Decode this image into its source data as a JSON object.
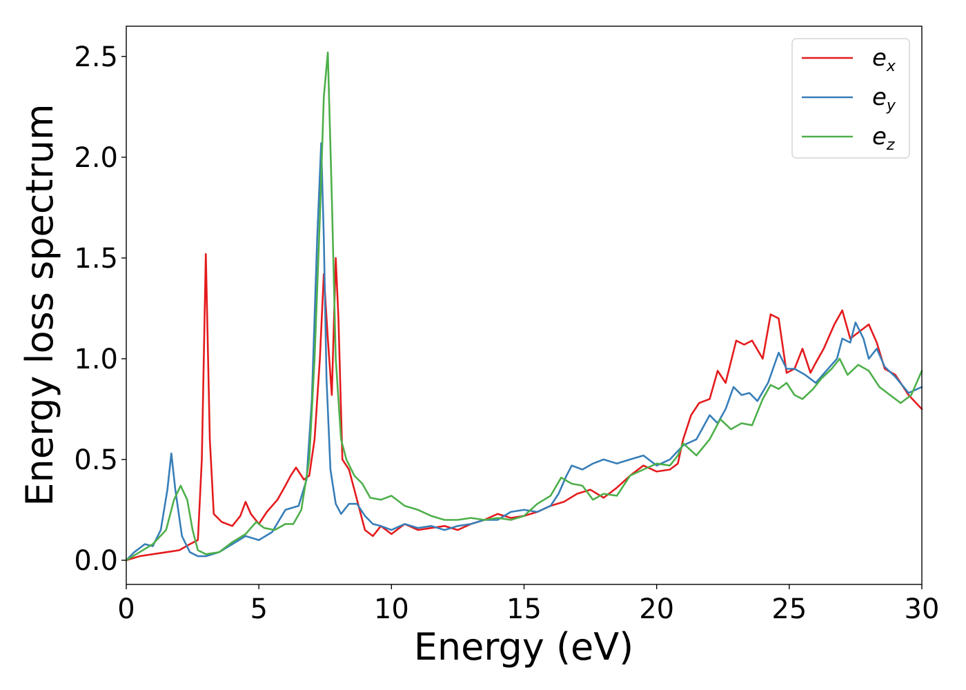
{
  "chart_data": {
    "type": "line",
    "xlabel": "Energy (eV)",
    "ylabel": "Energy loss spectrum",
    "xlim": [
      0,
      30
    ],
    "ylim": [
      -0.12,
      2.65
    ],
    "xticks": [
      0,
      5,
      10,
      15,
      20,
      25,
      30
    ],
    "xtick_labels": [
      "0",
      "5",
      "10",
      "15",
      "20",
      "25",
      "30"
    ],
    "yticks": [
      0.0,
      0.5,
      1.0,
      1.5,
      2.0,
      2.5
    ],
    "ytick_labels": [
      "0.0",
      "0.5",
      "1.0",
      "1.5",
      "2.0",
      "2.5"
    ],
    "grid": false,
    "legend_position": "top-right",
    "series": [
      {
        "name": "e_x",
        "legend_base": "e",
        "legend_sub": "x",
        "color": "#e41a1c",
        "x": [
          0,
          0.5,
          1,
          1.5,
          2,
          2.4,
          2.7,
          2.85,
          3.0,
          3.15,
          3.3,
          3.6,
          4.0,
          4.3,
          4.5,
          4.7,
          5.0,
          5.3,
          5.7,
          6.0,
          6.2,
          6.4,
          6.7,
          6.9,
          7.1,
          7.3,
          7.45,
          7.6,
          7.75,
          7.9,
          8.0,
          8.15,
          8.4,
          8.7,
          9.0,
          9.3,
          9.6,
          10.0,
          10.5,
          11.0,
          11.5,
          12.0,
          12.5,
          13.0,
          13.5,
          14.0,
          14.5,
          15.0,
          15.5,
          16.0,
          16.5,
          17.0,
          17.5,
          18.0,
          18.5,
          19.0,
          19.5,
          20.0,
          20.5,
          20.8,
          21.0,
          21.3,
          21.6,
          22.0,
          22.3,
          22.6,
          23.0,
          23.3,
          23.6,
          24.0,
          24.3,
          24.6,
          24.9,
          25.2,
          25.5,
          25.8,
          26.0,
          26.3,
          26.7,
          27.0,
          27.3,
          27.6,
          28.0,
          28.3,
          28.6,
          29.0,
          29.5,
          30.0
        ],
        "y": [
          0.0,
          0.02,
          0.03,
          0.04,
          0.05,
          0.08,
          0.1,
          0.5,
          1.52,
          0.6,
          0.23,
          0.19,
          0.17,
          0.22,
          0.29,
          0.23,
          0.18,
          0.24,
          0.3,
          0.37,
          0.42,
          0.46,
          0.4,
          0.42,
          0.6,
          1.0,
          1.42,
          1.1,
          0.82,
          1.5,
          1.2,
          0.5,
          0.45,
          0.3,
          0.15,
          0.12,
          0.17,
          0.13,
          0.18,
          0.15,
          0.16,
          0.17,
          0.15,
          0.18,
          0.2,
          0.23,
          0.21,
          0.22,
          0.24,
          0.27,
          0.29,
          0.33,
          0.35,
          0.31,
          0.36,
          0.42,
          0.47,
          0.44,
          0.45,
          0.48,
          0.6,
          0.72,
          0.78,
          0.8,
          0.94,
          0.88,
          1.09,
          1.07,
          1.09,
          1.0,
          1.22,
          1.2,
          0.93,
          0.95,
          1.05,
          0.93,
          0.98,
          1.05,
          1.17,
          1.24,
          1.1,
          1.13,
          1.17,
          1.08,
          0.95,
          0.92,
          0.82,
          0.75
        ]
      },
      {
        "name": "e_y",
        "legend_base": "e",
        "legend_sub": "y",
        "color": "#377eb8",
        "x": [
          0,
          0.3,
          0.7,
          1.0,
          1.3,
          1.55,
          1.7,
          1.85,
          2.1,
          2.4,
          2.7,
          3.0,
          3.5,
          4.0,
          4.5,
          5.0,
          5.5,
          6.0,
          6.5,
          6.8,
          7.0,
          7.2,
          7.35,
          7.45,
          7.55,
          7.7,
          7.9,
          8.1,
          8.4,
          8.7,
          9.0,
          9.3,
          9.6,
          10.0,
          10.5,
          11.0,
          11.5,
          12.0,
          12.5,
          13.0,
          13.5,
          14.0,
          14.5,
          15.0,
          15.5,
          16.0,
          16.3,
          16.6,
          16.8,
          17.2,
          17.6,
          18.0,
          18.5,
          19.0,
          19.5,
          20.0,
          20.5,
          21.0,
          21.5,
          22.0,
          22.3,
          22.6,
          22.9,
          23.2,
          23.5,
          23.8,
          24.2,
          24.6,
          24.9,
          25.2,
          25.6,
          26.0,
          26.4,
          26.8,
          27.0,
          27.3,
          27.5,
          27.8,
          28.0,
          28.3,
          28.6,
          29.0,
          29.5,
          30.0
        ],
        "y": [
          0.0,
          0.04,
          0.08,
          0.07,
          0.15,
          0.35,
          0.53,
          0.35,
          0.12,
          0.04,
          0.02,
          0.02,
          0.04,
          0.08,
          0.12,
          0.1,
          0.14,
          0.25,
          0.27,
          0.4,
          0.8,
          1.6,
          2.07,
          1.6,
          0.9,
          0.45,
          0.28,
          0.23,
          0.28,
          0.28,
          0.22,
          0.18,
          0.17,
          0.15,
          0.18,
          0.16,
          0.17,
          0.15,
          0.17,
          0.18,
          0.2,
          0.2,
          0.24,
          0.25,
          0.24,
          0.27,
          0.33,
          0.42,
          0.47,
          0.45,
          0.48,
          0.5,
          0.48,
          0.5,
          0.52,
          0.47,
          0.5,
          0.57,
          0.6,
          0.72,
          0.68,
          0.75,
          0.86,
          0.82,
          0.83,
          0.79,
          0.88,
          1.03,
          0.95,
          0.95,
          0.92,
          0.88,
          0.94,
          1.0,
          1.1,
          1.08,
          1.18,
          1.1,
          1.0,
          1.05,
          0.96,
          0.91,
          0.83,
          0.86
        ]
      },
      {
        "name": "e_z",
        "legend_base": "e",
        "legend_sub": "z",
        "color": "#4daf4a",
        "x": [
          0,
          0.5,
          1.0,
          1.5,
          1.8,
          2.05,
          2.3,
          2.5,
          2.7,
          3.0,
          3.5,
          4.0,
          4.5,
          4.9,
          5.2,
          5.6,
          6.0,
          6.3,
          6.6,
          6.9,
          7.1,
          7.3,
          7.45,
          7.6,
          7.75,
          7.9,
          8.1,
          8.3,
          8.6,
          8.9,
          9.2,
          9.6,
          10.0,
          10.5,
          11.0,
          11.5,
          12.0,
          12.5,
          13.0,
          13.5,
          14.0,
          14.5,
          15.0,
          15.5,
          16.0,
          16.4,
          16.8,
          17.2,
          17.6,
          18.0,
          18.5,
          19.0,
          19.5,
          20.0,
          20.5,
          20.8,
          21.0,
          21.5,
          22.0,
          22.4,
          22.8,
          23.2,
          23.6,
          24.0,
          24.3,
          24.6,
          24.9,
          25.2,
          25.5,
          25.9,
          26.2,
          26.6,
          26.9,
          27.2,
          27.6,
          28.0,
          28.4,
          28.8,
          29.2,
          29.6,
          30.0
        ],
        "y": [
          0.0,
          0.04,
          0.08,
          0.15,
          0.3,
          0.37,
          0.3,
          0.15,
          0.05,
          0.03,
          0.04,
          0.09,
          0.13,
          0.19,
          0.16,
          0.15,
          0.18,
          0.18,
          0.25,
          0.5,
          1.0,
          1.7,
          2.3,
          2.52,
          1.8,
          1.0,
          0.6,
          0.5,
          0.42,
          0.38,
          0.31,
          0.3,
          0.32,
          0.27,
          0.25,
          0.22,
          0.2,
          0.2,
          0.21,
          0.2,
          0.21,
          0.2,
          0.22,
          0.28,
          0.32,
          0.41,
          0.38,
          0.37,
          0.3,
          0.33,
          0.32,
          0.42,
          0.45,
          0.48,
          0.47,
          0.52,
          0.58,
          0.52,
          0.6,
          0.7,
          0.65,
          0.68,
          0.67,
          0.8,
          0.87,
          0.85,
          0.88,
          0.82,
          0.8,
          0.85,
          0.9,
          0.95,
          1.0,
          0.92,
          0.97,
          0.94,
          0.86,
          0.82,
          0.78,
          0.82,
          0.94
        ]
      }
    ]
  }
}
